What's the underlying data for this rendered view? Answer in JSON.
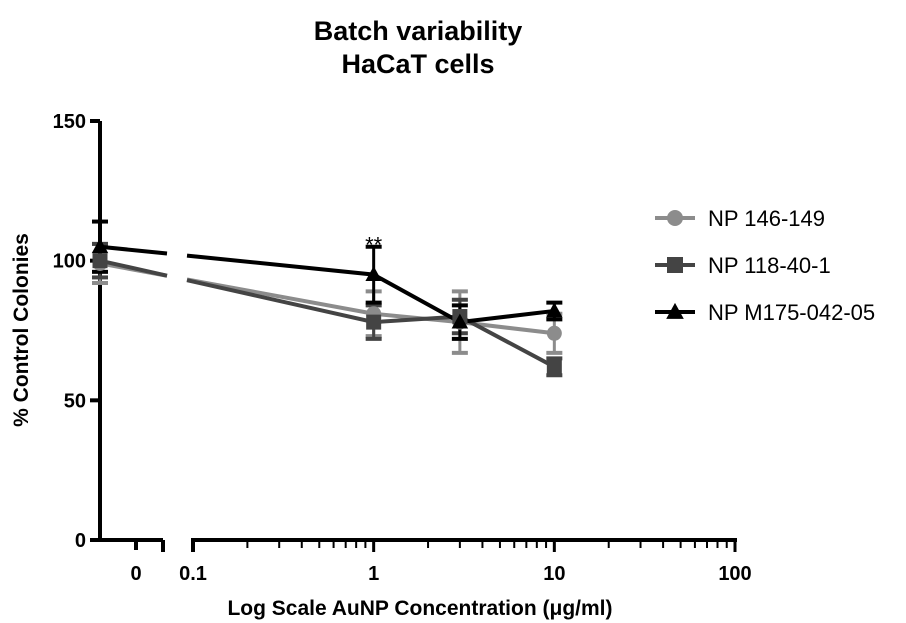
{
  "chart_data": {
    "type": "line",
    "title": [
      "Batch variability",
      "HaCaT cells"
    ],
    "xlabel": "Log Scale AuNP Concentration (μg/ml)",
    "ylabel": "% Control Colonies",
    "x_scale": "log",
    "x_break": true,
    "xlim": [
      0.1,
      100
    ],
    "ylim": [
      0,
      150
    ],
    "x_tick_labels": [
      "0",
      "0.1",
      "1",
      "10",
      "100"
    ],
    "y_tick_labels": [
      "0",
      "50",
      "100",
      "150"
    ],
    "x": [
      0,
      1,
      3,
      10
    ],
    "series": [
      {
        "name": "NP 146-149",
        "marker": "circle",
        "color": "#8c8c8c",
        "values": [
          99,
          81,
          78,
          74
        ],
        "errors": [
          7,
          8,
          11,
          7
        ]
      },
      {
        "name": "NP 118-40-1",
        "marker": "square",
        "color": "#444444",
        "values": [
          100,
          78,
          80,
          62
        ],
        "errors": [
          6,
          6,
          6,
          3
        ]
      },
      {
        "name": "NP M175-042-05",
        "marker": "triangle",
        "color": "#000000",
        "values": [
          105,
          95,
          78,
          82
        ],
        "errors": [
          9,
          10,
          6,
          3
        ]
      }
    ],
    "annotations": [
      {
        "text": "**",
        "x": 1,
        "y": 105
      }
    ],
    "legend_position": "right",
    "grid": false
  }
}
